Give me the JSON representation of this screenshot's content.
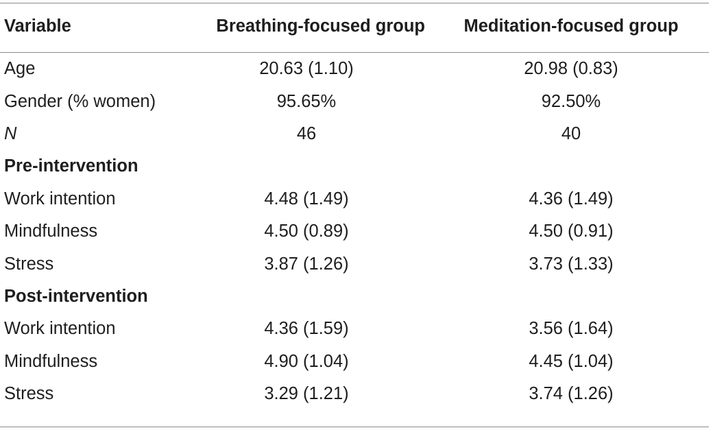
{
  "table": {
    "headers": {
      "variable": "Variable",
      "group1": "Breathing-focused group",
      "group2": "Meditation-focused group"
    },
    "rows": [
      {
        "label": "Age",
        "group1": "20.63 (1.10)",
        "group2": "20.98 (0.83)"
      },
      {
        "label": "Gender (% women)",
        "group1": "95.65%",
        "group2": "92.50%"
      },
      {
        "label": "N",
        "group1": "46",
        "group2": "40"
      }
    ],
    "sections": [
      {
        "title": "Pre-intervention",
        "rows": [
          {
            "label": "Work intention",
            "group1": "4.48 (1.49)",
            "group2": "4.36 (1.49)"
          },
          {
            "label": "Mindfulness",
            "group1": "4.50 (0.89)",
            "group2": "4.50 (0.91)"
          },
          {
            "label": "Stress",
            "group1": "3.87 (1.26)",
            "group2": "3.73 (1.33)"
          }
        ]
      },
      {
        "title": "Post-intervention",
        "rows": [
          {
            "label": "Work intention",
            "group1": "4.36 (1.59)",
            "group2": "3.56 (1.64)"
          },
          {
            "label": "Mindfulness",
            "group1": "4.90 (1.04)",
            "group2": "4.45 (1.04)"
          },
          {
            "label": "Stress",
            "group1": "3.29 (1.21)",
            "group2": "3.74 (1.26)"
          }
        ]
      }
    ]
  }
}
